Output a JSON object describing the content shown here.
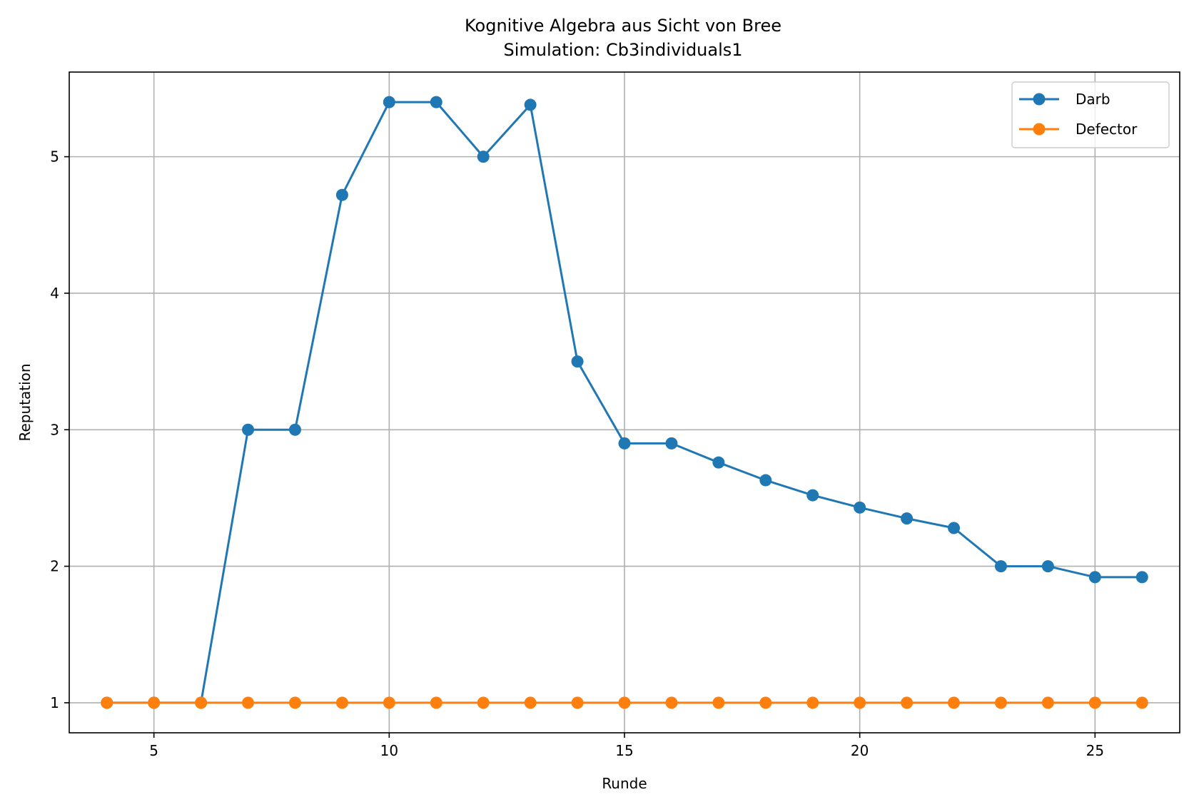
{
  "chart_data": {
    "type": "line",
    "title": "Kognitive Algebra aus Sicht von Bree",
    "subtitle": "Simulation: Cb3individuals1",
    "xlabel": "Runde",
    "ylabel": "Reputation",
    "xlim": [
      3.2,
      26.8
    ],
    "ylim": [
      0.78,
      5.62
    ],
    "xticks": [
      5,
      10,
      15,
      20,
      25
    ],
    "yticks": [
      1,
      2,
      3,
      4,
      5
    ],
    "grid": true,
    "legend_position": "top-right",
    "x": [
      4,
      5,
      6,
      7,
      8,
      9,
      10,
      11,
      12,
      13,
      14,
      15,
      16,
      17,
      18,
      19,
      20,
      21,
      22,
      23,
      24,
      25,
      26
    ],
    "series": [
      {
        "name": "Darb",
        "color": "#1f77b4",
        "marker": "circle",
        "values": [
          1,
          1,
          1,
          3,
          3,
          4.72,
          5.4,
          5.4,
          5,
          5.38,
          3.5,
          2.9,
          2.9,
          2.76,
          2.63,
          2.52,
          2.43,
          2.35,
          2.28,
          2,
          2,
          1.92,
          1.92
        ]
      },
      {
        "name": "Defector",
        "color": "#ff7f0e",
        "marker": "circle",
        "values": [
          1,
          1,
          1,
          1,
          1,
          1,
          1,
          1,
          1,
          1,
          1,
          1,
          1,
          1,
          1,
          1,
          1,
          1,
          1,
          1,
          1,
          1,
          1
        ]
      }
    ]
  }
}
